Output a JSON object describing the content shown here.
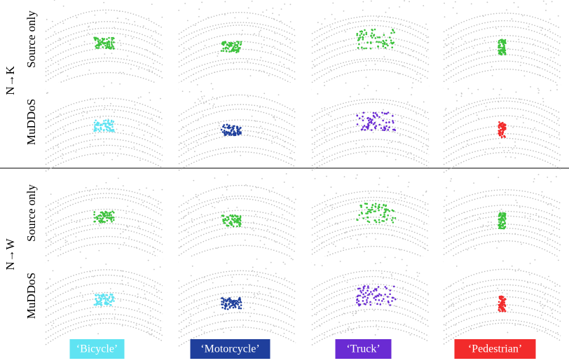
{
  "groups": [
    {
      "label": "N→K",
      "rows": [
        "Source only",
        "MuDDoS"
      ]
    },
    {
      "label": "N→W",
      "rows": [
        "Source only",
        "MuDDoS"
      ]
    }
  ],
  "classes": [
    {
      "label": "‘Bicycle’",
      "color": "#5fe3f2"
    },
    {
      "label": "‘Motorcycle’",
      "color": "#1f3f9c"
    },
    {
      "label": "‘Truck’",
      "color": "#6a2bd3"
    },
    {
      "label": "‘Pedestrian’",
      "color": "#f22b2b"
    }
  ]
}
